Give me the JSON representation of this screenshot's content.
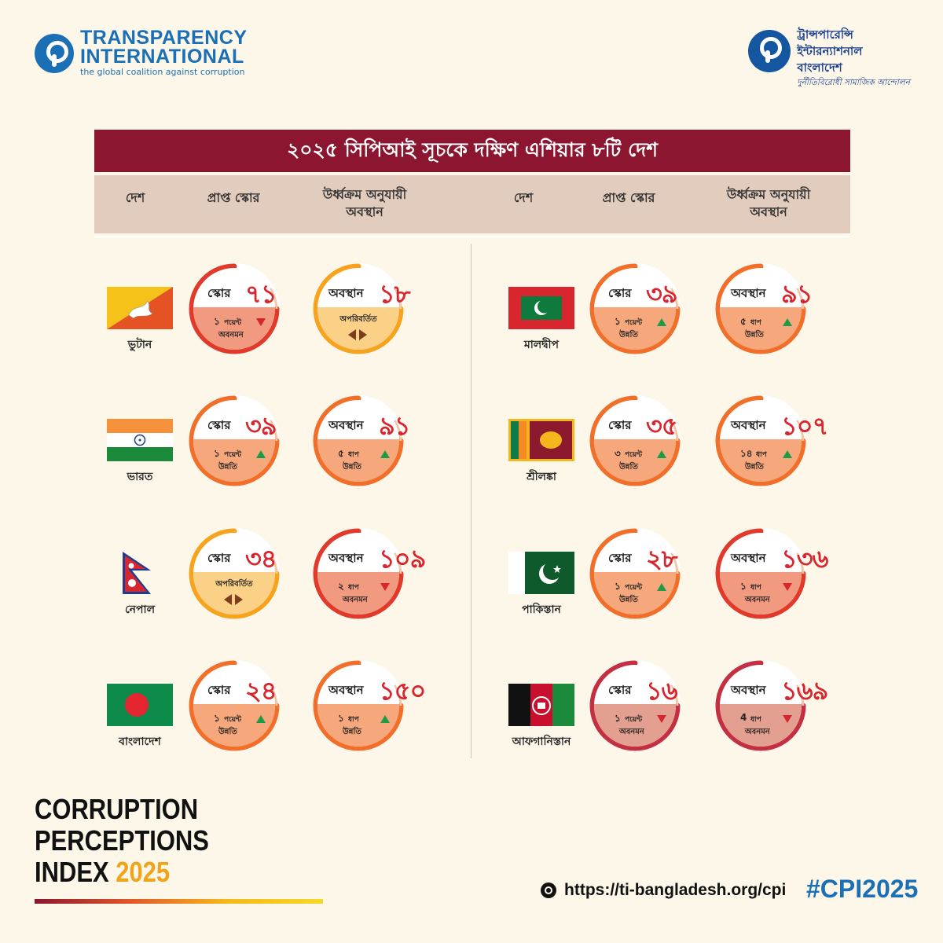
{
  "logos": {
    "ti": {
      "line1": "TRANSPARENCY",
      "line2": "INTERNATIONAL",
      "tagline": "the global coalition against corruption"
    },
    "tib": {
      "line1": "ট্রান্সপারেন্সি",
      "line2": "ইন্টারন্যাশনাল",
      "line3": "বাংলাদেশ",
      "tagline": "দুর্নীতিবিরোধী সামাজিক আন্দোলন"
    }
  },
  "title": "২০২৫ সিপিআই সূচকে দক্ষিণ এশিয়ার ৮টি দেশ",
  "headers": {
    "country": "দেশ",
    "score": "প্রাপ্ত স্কোর",
    "rank_line1": "উর্ধ্বক্রম অনুযায়ী",
    "rank_line2": "অবস্থান"
  },
  "labels": {
    "score": "স্কোর",
    "rank": "অবস্থান",
    "unchanged": "অপরিবর্তিত"
  },
  "colors": {
    "maroon": "#8c1630",
    "red": "#d7262e",
    "up": "#1f9a47",
    "accent_blue": "#1a6fb5"
  },
  "countries": [
    {
      "name": "ভুটান",
      "flag": "bhutan-flag",
      "score": {
        "value": "৭১",
        "change_num": "১",
        "change_unit": "পয়েন্ট",
        "change_word": "অবনমন",
        "direction": "down"
      },
      "rank": {
        "value": "১৮",
        "direction": "same"
      }
    },
    {
      "name": "ভারত",
      "flag": "india-flag",
      "score": {
        "value": "৩৯",
        "change_num": "১",
        "change_unit": "পয়েন্ট",
        "change_word": "উন্নতি",
        "direction": "up"
      },
      "rank": {
        "value": "৯১",
        "change_num": "৫",
        "change_unit": "ধাপ",
        "change_word": "উন্নতি",
        "direction": "up"
      }
    },
    {
      "name": "নেপাল",
      "flag": "nepal-flag",
      "score": {
        "value": "৩৪",
        "direction": "same"
      },
      "rank": {
        "value": "১০৯",
        "change_num": "২",
        "change_unit": "ধাপ",
        "change_word": "অবনমন",
        "direction": "down"
      }
    },
    {
      "name": "বাংলাদেশ",
      "flag": "bangladesh-flag",
      "score": {
        "value": "২৪",
        "change_num": "১",
        "change_unit": "পয়েন্ট",
        "change_word": "উন্নতি",
        "direction": "up"
      },
      "rank": {
        "value": "১৫০",
        "change_num": "১",
        "change_unit": "ধাপ",
        "change_word": "উন্নতি",
        "direction": "up"
      }
    },
    {
      "name": "মালদ্বীপ",
      "flag": "maldives-flag",
      "score": {
        "value": "৩৯",
        "change_num": "১",
        "change_unit": "পয়েন্ট",
        "change_word": "উন্নতি",
        "direction": "up"
      },
      "rank": {
        "value": "৯১",
        "change_num": "৫",
        "change_unit": "ধাপ",
        "change_word": "উন্নতি",
        "direction": "up"
      }
    },
    {
      "name": "শ্রীলঙ্কা",
      "flag": "sri-lanka-flag",
      "score": {
        "value": "৩৫",
        "change_num": "৩",
        "change_unit": "পয়েন্ট",
        "change_word": "উন্নতি",
        "direction": "up"
      },
      "rank": {
        "value": "১০৭",
        "change_num": "১৪",
        "change_unit": "ধাপ",
        "change_word": "উন্নতি",
        "direction": "up"
      }
    },
    {
      "name": "পাকিস্তান",
      "flag": "pakistan-flag",
      "score": {
        "value": "২৮",
        "change_num": "১",
        "change_unit": "পয়েন্ট",
        "change_word": "উন্নতি",
        "direction": "up"
      },
      "rank": {
        "value": "১৩৬",
        "change_num": "১",
        "change_unit": "ধাপ",
        "change_word": "অবনমন",
        "direction": "down"
      }
    },
    {
      "name": "আফগানিস্তান",
      "flag": "afghanistan-flag",
      "score": {
        "value": "১৬",
        "change_num": "১",
        "change_unit": "পয়েন্ট",
        "change_word": "অবনমন",
        "direction": "down"
      },
      "rank": {
        "value": "১৬৯",
        "change_num": "4",
        "change_unit": "ধাপ",
        "change_word": "অবনমন",
        "direction": "down"
      }
    }
  ],
  "footer": {
    "cpi_line1": "CORRUPTION",
    "cpi_line2": "PERCEPTIONS",
    "cpi_line3_prefix": "INDEX",
    "cpi_year": "2025",
    "url": "https://ti-bangladesh.org/cpi",
    "hashtag": "#CPI2025"
  }
}
